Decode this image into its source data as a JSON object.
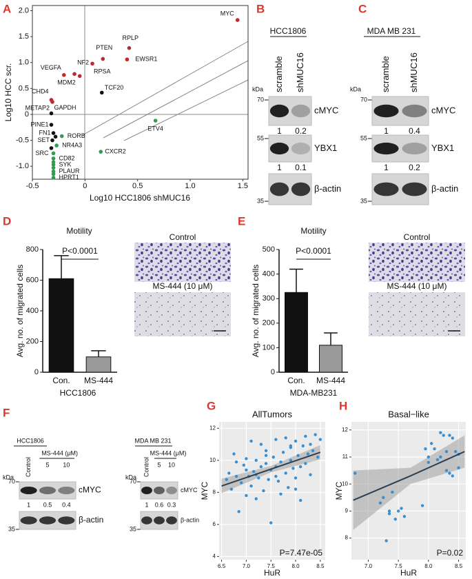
{
  "chart_data": [
    {
      "type": "scatter",
      "panel": "A",
      "xlabel": "Log10 HCC1806 shMUC16",
      "ylabel": "Log10 HCC scr.",
      "xlim": [
        -0.5,
        1.55
      ],
      "ylim": [
        -1.25,
        2.1
      ],
      "xticks": [
        -0.5,
        0,
        0.5,
        {
          "value": 1,
          "label": "1.0"
        },
        1.5
      ],
      "yticks": [
        {
          "value": -1,
          "label": "-1.0"
        },
        -0.5,
        0,
        0.5,
        {
          "value": 1,
          "label": "1.0"
        },
        1.5,
        {
          "value": 2,
          "label": "2.0"
        }
      ],
      "series": [
        {
          "color": "#c0282e",
          "x": [
            1.45,
            0.42,
            0.4,
            0.17,
            0.07,
            -0.05,
            -0.1,
            -0.2,
            -0.32,
            -0.31
          ],
          "values": [
            1.82,
            1.28,
            1.06,
            1.07,
            0.98,
            0.74,
            0.78,
            0.76,
            0.28,
            0.24
          ],
          "labels": [
            "MYC",
            "RPLP",
            "EWSR1",
            "PTEN",
            "RPSA",
            "MDM2",
            "NF2",
            "VEGFA",
            "CHD4",
            "METAP2"
          ]
        },
        {
          "color": "#111111",
          "x": [
            0.16,
            -0.32,
            -0.32,
            -0.3,
            -0.31,
            -0.32,
            -0.28
          ],
          "values": [
            0.42,
            0.02,
            -0.2,
            -0.36,
            -0.5,
            -0.65,
            -0.43
          ],
          "labels": [
            "TCF20",
            "GAPDH",
            "PINE1",
            "FN1",
            "SET",
            "SRC",
            null
          ]
        },
        {
          "color": "#2e9e4f",
          "x": [
            0.67,
            0.15,
            -0.22,
            -0.27,
            -0.3,
            -0.3,
            -0.3,
            -0.3,
            -0.3,
            -0.3,
            -0.3,
            -0.3
          ],
          "values": [
            -0.12,
            -0.72,
            -0.42,
            -0.6,
            -0.85,
            -0.97,
            -1.1,
            -1.22,
            -0.92,
            -1.03,
            -1.15,
            -0.75
          ],
          "labels": [
            "ETV4",
            "CXCR2",
            "RORB",
            "NR4A3",
            "CD82",
            "SYK",
            "PLAUR",
            "HPRT1",
            null,
            null,
            null,
            null
          ]
        }
      ]
    },
    {
      "type": "bar",
      "panel": "D",
      "title": "Motility",
      "ylabel": "Avg. no. of migrated cells",
      "xlabel": "HCC1806",
      "categories": [
        "Con.",
        "MS-444"
      ],
      "values": [
        610,
        100
      ],
      "errors": [
        150,
        40
      ],
      "colors": [
        "#111111",
        "#9a9a9a"
      ],
      "ylim": [
        0,
        800
      ],
      "yticks": [
        0,
        200,
        400,
        600,
        800
      ],
      "annotation": "P<0.0001",
      "image_labels": [
        "Control",
        "MS-444 (10 μM)"
      ]
    },
    {
      "type": "bar",
      "panel": "E",
      "title": "Motility",
      "ylabel": "Avg. no. of migrated cells",
      "xlabel": "MDA-MB231",
      "categories": [
        "Con.",
        "MS-444"
      ],
      "values": [
        325,
        110
      ],
      "errors": [
        95,
        50
      ],
      "colors": [
        "#111111",
        "#9a9a9a"
      ],
      "ylim": [
        0,
        500
      ],
      "yticks": [
        0,
        100,
        200,
        300,
        400,
        500
      ],
      "annotation": "P<0.0001",
      "image_labels": [
        "Control",
        "MS-444 (10 μM)"
      ]
    },
    {
      "type": "scatter",
      "panel": "G",
      "title": "AllTumors",
      "xlabel": "HuR",
      "ylabel": "MYC",
      "annotation": "P=7.47e-05",
      "xlim": [
        6.45,
        8.6
      ],
      "ylim": [
        3.8,
        12.4
      ],
      "xticks": [
        6.5,
        {
          "value": 7,
          "label": "7.0"
        },
        7.5,
        {
          "value": 8,
          "label": "8.0"
        },
        8.5
      ],
      "yticks": [
        4,
        6,
        8,
        10,
        12
      ],
      "grid": true,
      "grid_color": "#ffffff",
      "panel_background": "#ebebeb",
      "series": [
        {
          "color": "#3a8fd0",
          "x": [
            6.6,
            6.65,
            6.7,
            6.75,
            6.8,
            6.85,
            6.9,
            6.95,
            7.0,
            7.0,
            7.05,
            7.1,
            7.1,
            7.15,
            7.2,
            7.2,
            7.25,
            7.3,
            7.3,
            7.35,
            7.4,
            7.4,
            7.45,
            7.5,
            7.5,
            7.55,
            7.6,
            7.6,
            7.65,
            7.7,
            7.7,
            7.75,
            7.8,
            7.8,
            7.85,
            7.9,
            7.9,
            7.95,
            8.0,
            8.0,
            8.05,
            8.1,
            8.1,
            8.15,
            8.2,
            8.2,
            8.25,
            8.3,
            8.3,
            8.35,
            8.4,
            8.45,
            8.5,
            7.6,
            7.0,
            6.8,
            7.4,
            8.0,
            7.2,
            7.9
          ],
          "values": [
            8.8,
            9.2,
            8.2,
            10.4,
            9.0,
            6.8,
            8.6,
            9.7,
            7.8,
            10.1,
            9.0,
            8.4,
            11.2,
            9.3,
            10.0,
            7.6,
            8.9,
            9.6,
            11.0,
            8.1,
            9.8,
            10.6,
            8.8,
            9.4,
            6.1,
            10.2,
            9.0,
            11.3,
            8.7,
            9.9,
            7.9,
            10.5,
            9.2,
            11.4,
            8.3,
            10.0,
            10.8,
            9.5,
            8.9,
            11.2,
            10.3,
            9.6,
            7.5,
            10.9,
            9.8,
            11.5,
            10.4,
            9.1,
            11.0,
            10.6,
            11.6,
            10.2,
            11.3,
            9.6,
            9.4,
            9.9,
            10.3,
            8.2,
            9.1,
            10.9
          ]
        }
      ],
      "fit": {
        "color": "#2c3e50",
        "band_color": "#9a9a9a",
        "x": [
          6.5,
          7.5,
          8.5
        ],
        "values": [
          8.4,
          9.45,
          10.5
        ],
        "lower": [
          7.95,
          9.25,
          10.05
        ],
        "upper": [
          8.85,
          9.65,
          10.95
        ]
      }
    },
    {
      "type": "scatter",
      "panel": "H",
      "title": "Basal−like",
      "xlabel": "HuR",
      "ylabel": "MYC",
      "annotation": "P=0.02",
      "xlim": [
        6.72,
        8.62
      ],
      "ylim": [
        7.2,
        12.3
      ],
      "xticks": [
        {
          "value": 7,
          "label": "7.0"
        },
        7.5,
        {
          "value": 8,
          "label": "8.0"
        },
        8.5
      ],
      "yticks": [
        8,
        9,
        10,
        11,
        12
      ],
      "grid": true,
      "grid_color": "#ffffff",
      "panel_background": "#ebebeb",
      "series": [
        {
          "color": "#3a8fd0",
          "x": [
            6.78,
            7.2,
            7.25,
            7.3,
            7.35,
            7.4,
            7.45,
            7.5,
            7.55,
            7.9,
            7.95,
            8.0,
            8.0,
            8.05,
            8.1,
            8.15,
            8.2,
            8.25,
            8.3,
            8.3,
            8.35,
            8.4,
            8.4,
            8.45,
            8.5,
            8.5,
            7.6,
            8.2,
            8.35,
            7.35
          ],
          "values": [
            10.4,
            9.3,
            9.5,
            7.9,
            8.9,
            9.7,
            8.7,
            9.0,
            9.1,
            9.2,
            11.3,
            11.0,
            10.8,
            11.5,
            11.3,
            10.9,
            11.0,
            11.8,
            10.5,
            11.2,
            10.4,
            11.7,
            10.3,
            11.2,
            11.1,
            10.6,
            8.8,
            11.9,
            11.8,
            9.0
          ]
        }
      ],
      "fit": {
        "color": "#2c3e50",
        "band_color": "#9a9a9a",
        "x": [
          6.75,
          7.7,
          8.6
        ],
        "values": [
          9.4,
          10.3,
          11.2
        ],
        "lower": [
          8.3,
          10.0,
          10.6
        ],
        "upper": [
          10.5,
          10.6,
          11.8
        ]
      }
    }
  ],
  "blots": [
    {
      "panel": "B",
      "title": "HCC1806",
      "lanes": [
        "scramble",
        "shMUC16"
      ],
      "kda_label": "kDa",
      "markers": [
        70,
        55,
        35
      ],
      "bands": [
        {
          "name": "cMYC",
          "quant": [
            1,
            0.2
          ]
        },
        {
          "name": "YBX1",
          "quant": [
            1,
            0.1
          ]
        },
        {
          "name": "β-actin"
        }
      ]
    },
    {
      "panel": "C",
      "title": "MDA MB 231",
      "lanes": [
        "scramble",
        "shMUC16"
      ],
      "kda_label": "kDa",
      "markers": [
        70,
        55,
        35
      ],
      "bands": [
        {
          "name": "cMYC",
          "quant": [
            1,
            0.4
          ]
        },
        {
          "name": "YBX1",
          "quant": [
            1,
            0.2
          ]
        },
        {
          "name": "β-actin"
        }
      ]
    },
    {
      "panel": "F",
      "title": "HCC1806",
      "lanes": [
        "Control",
        "5",
        "10"
      ],
      "lane_group": "MS-444 (μM)",
      "kda_label": "kDa",
      "markers": [
        70,
        35
      ],
      "bands": [
        {
          "name": "cMYC",
          "quant": [
            1,
            0.5,
            0.4
          ]
        },
        {
          "name": "β-actin"
        }
      ]
    },
    {
      "title": "MDA MB 231",
      "lanes": [
        "Control",
        "5",
        "10"
      ],
      "lane_group": "MS-444 (μM)",
      "kda_label": "kDa",
      "markers": [
        70,
        35
      ],
      "bands": [
        {
          "name": "cMYC",
          "quant": [
            1,
            0.6,
            0.3
          ]
        },
        {
          "name": "β-actin"
        }
      ]
    }
  ]
}
